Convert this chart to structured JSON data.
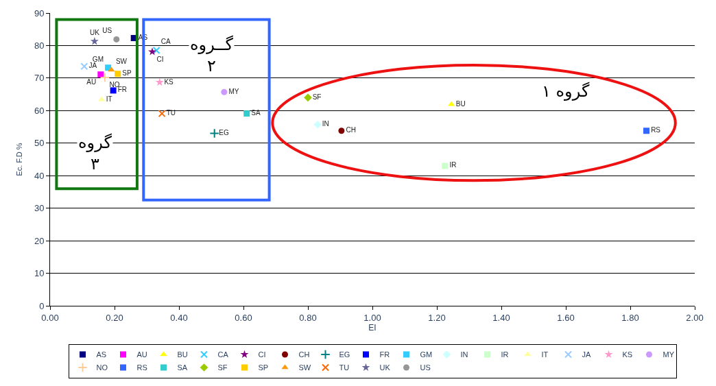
{
  "chart_data": {
    "type": "scatter",
    "xlabel": "EI",
    "ylabel": "Ec. F.D %",
    "xlim": [
      0,
      2
    ],
    "xticks": [
      {
        "value": 0,
        "label": "0.00"
      },
      {
        "value": 0.2,
        "label": "0.20"
      },
      {
        "value": 0.4,
        "label": "0.40"
      },
      {
        "value": 0.6,
        "label": "0.60"
      },
      {
        "value": 0.8,
        "label": "0.80"
      },
      {
        "value": 1,
        "label": "1.00"
      },
      {
        "value": 1.2,
        "label": "1.20"
      },
      {
        "value": 1.4,
        "label": "1.40"
      },
      {
        "value": 1.6,
        "label": "1.60"
      },
      {
        "value": 1.8,
        "label": "1.80"
      },
      {
        "value": 2,
        "label": "2.00"
      }
    ],
    "ylim": [
      0,
      90
    ],
    "yticks": [
      0,
      10,
      20,
      30,
      40,
      50,
      60,
      70,
      80,
      90
    ],
    "grid": "y",
    "legend": "bottom",
    "annotations": [
      "گروه ۱",
      "گــروه ۲",
      "گروه ۳"
    ],
    "series": [
      {
        "name": "AS",
        "color": "#000080",
        "marker": "square",
        "x": [
          0.26
        ],
        "values": [
          82.3
        ]
      },
      {
        "name": "AU",
        "color": "#ff00ff",
        "marker": "square",
        "x": [
          0.157
        ],
        "values": [
          71.1
        ]
      },
      {
        "name": "BU",
        "color": "#ffff00",
        "marker": "triangle",
        "x": [
          1.245
        ],
        "values": [
          61.9
        ]
      },
      {
        "name": "CA",
        "color": "#33ccff",
        "marker": "cross",
        "x": [
          0.33
        ],
        "values": [
          78.5
        ]
      },
      {
        "name": "CI",
        "color": "#800080",
        "marker": "star",
        "x": [
          0.317
        ],
        "values": [
          78.1
        ]
      },
      {
        "name": "CH",
        "color": "#800000",
        "marker": "circle",
        "x": [
          0.904
        ],
        "values": [
          53.8
        ]
      },
      {
        "name": "EG",
        "color": "#008080",
        "marker": "plus",
        "x": [
          0.51
        ],
        "values": [
          53.0
        ]
      },
      {
        "name": "FR",
        "color": "#0000ff",
        "marker": "square",
        "x": [
          0.196
        ],
        "values": [
          66.2
        ]
      },
      {
        "name": "GM",
        "color": "#33ccff",
        "marker": "square",
        "x": [
          0.18
        ],
        "values": [
          73.2
        ]
      },
      {
        "name": "IN",
        "color": "#ccffff",
        "marker": "diamond",
        "x": [
          0.83
        ],
        "values": [
          55.7
        ]
      },
      {
        "name": "IR",
        "color": "#ccffcc",
        "marker": "square",
        "x": [
          1.225
        ],
        "values": [
          43.0
        ]
      },
      {
        "name": "IT",
        "color": "#ffff99",
        "marker": "triangle",
        "x": [
          0.16
        ],
        "values": [
          63.4
        ]
      },
      {
        "name": "JA",
        "color": "#99ccff",
        "marker": "cross",
        "x": [
          0.106
        ],
        "values": [
          73.6
        ]
      },
      {
        "name": "KS",
        "color": "#ff99cc",
        "marker": "star",
        "x": [
          0.34
        ],
        "values": [
          68.7
        ]
      },
      {
        "name": "MY",
        "color": "#cc99ff",
        "marker": "circle",
        "x": [
          0.54
        ],
        "values": [
          65.7
        ]
      },
      {
        "name": "NO",
        "color": "#ffcc99",
        "marker": "plus",
        "x": [
          0.17
        ],
        "values": [
          70.2
        ]
      },
      {
        "name": "RS",
        "color": "#3366ff",
        "marker": "square",
        "x": [
          1.85
        ],
        "values": [
          53.8
        ]
      },
      {
        "name": "SA",
        "color": "#33cccc",
        "marker": "square",
        "x": [
          0.61
        ],
        "values": [
          59.1
        ]
      },
      {
        "name": "SF",
        "color": "#99cc00",
        "marker": "diamond",
        "x": [
          0.8
        ],
        "values": [
          64.0
        ]
      },
      {
        "name": "SP",
        "color": "#ffcc00",
        "marker": "square",
        "x": [
          0.21
        ],
        "values": [
          71.3
        ]
      },
      {
        "name": "SW",
        "color": "#ff9900",
        "marker": "triangle",
        "x": [
          0.19
        ],
        "values": [
          72.5
        ]
      },
      {
        "name": "TU",
        "color": "#ff6600",
        "marker": "cross",
        "x": [
          0.347
        ],
        "values": [
          59.1
        ]
      },
      {
        "name": "UK",
        "color": "#666699",
        "marker": "star",
        "x": [
          0.138
        ],
        "values": [
          81.3
        ]
      },
      {
        "name": "US",
        "color": "#969696",
        "marker": "circle",
        "x": [
          0.206
        ],
        "values": [
          81.9
        ]
      }
    ]
  }
}
